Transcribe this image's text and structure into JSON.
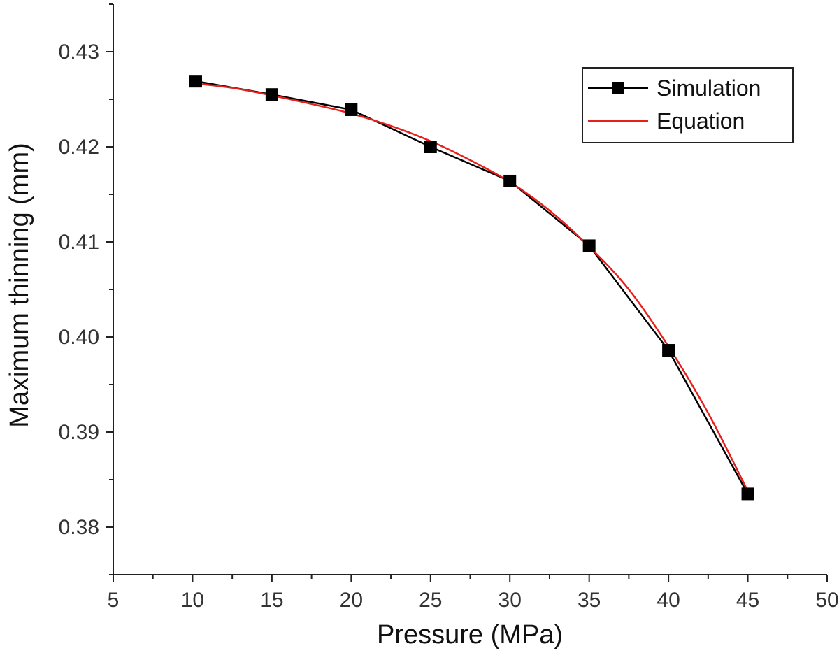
{
  "chart_data": {
    "type": "line",
    "title": "",
    "xlabel": "Pressure (MPa)",
    "ylabel": "Maximum thinning (mm)",
    "xlim": [
      5,
      50
    ],
    "ylim": [
      0.375,
      0.435
    ],
    "x_ticks": [
      5,
      10,
      15,
      20,
      25,
      30,
      35,
      40,
      45,
      50
    ],
    "y_ticks": [
      0.38,
      0.39,
      0.4,
      0.41,
      0.42,
      0.43
    ],
    "x_tick_labels": [
      "5",
      "10",
      "15",
      "20",
      "25",
      "30",
      "35",
      "40",
      "45",
      "50"
    ],
    "y_tick_labels": [
      "0.38",
      "0.39",
      "0.40",
      "0.41",
      "0.42",
      "0.43"
    ],
    "grid": false,
    "legend_position": "top-right",
    "series": [
      {
        "name": "Simulation",
        "color": "#000000",
        "marker": "square",
        "x": [
          10.2,
          15,
          20,
          25,
          30,
          35,
          40,
          45
        ],
        "values": [
          0.4269,
          0.4255,
          0.4239,
          0.42,
          0.4164,
          0.4096,
          0.3986,
          0.3835
        ]
      },
      {
        "name": "Equation",
        "color": "#e8201b",
        "marker": "none",
        "x": [
          10,
          12.5,
          15,
          17.5,
          20,
          22.5,
          25,
          27.5,
          30,
          32.5,
          35,
          37.5,
          40,
          42.5,
          45
        ],
        "values": [
          0.4267,
          0.4262,
          0.4254,
          0.4245,
          0.4235,
          0.4222,
          0.4206,
          0.4186,
          0.4163,
          0.4133,
          0.4095,
          0.405,
          0.399,
          0.392,
          0.3838
        ]
      }
    ]
  }
}
